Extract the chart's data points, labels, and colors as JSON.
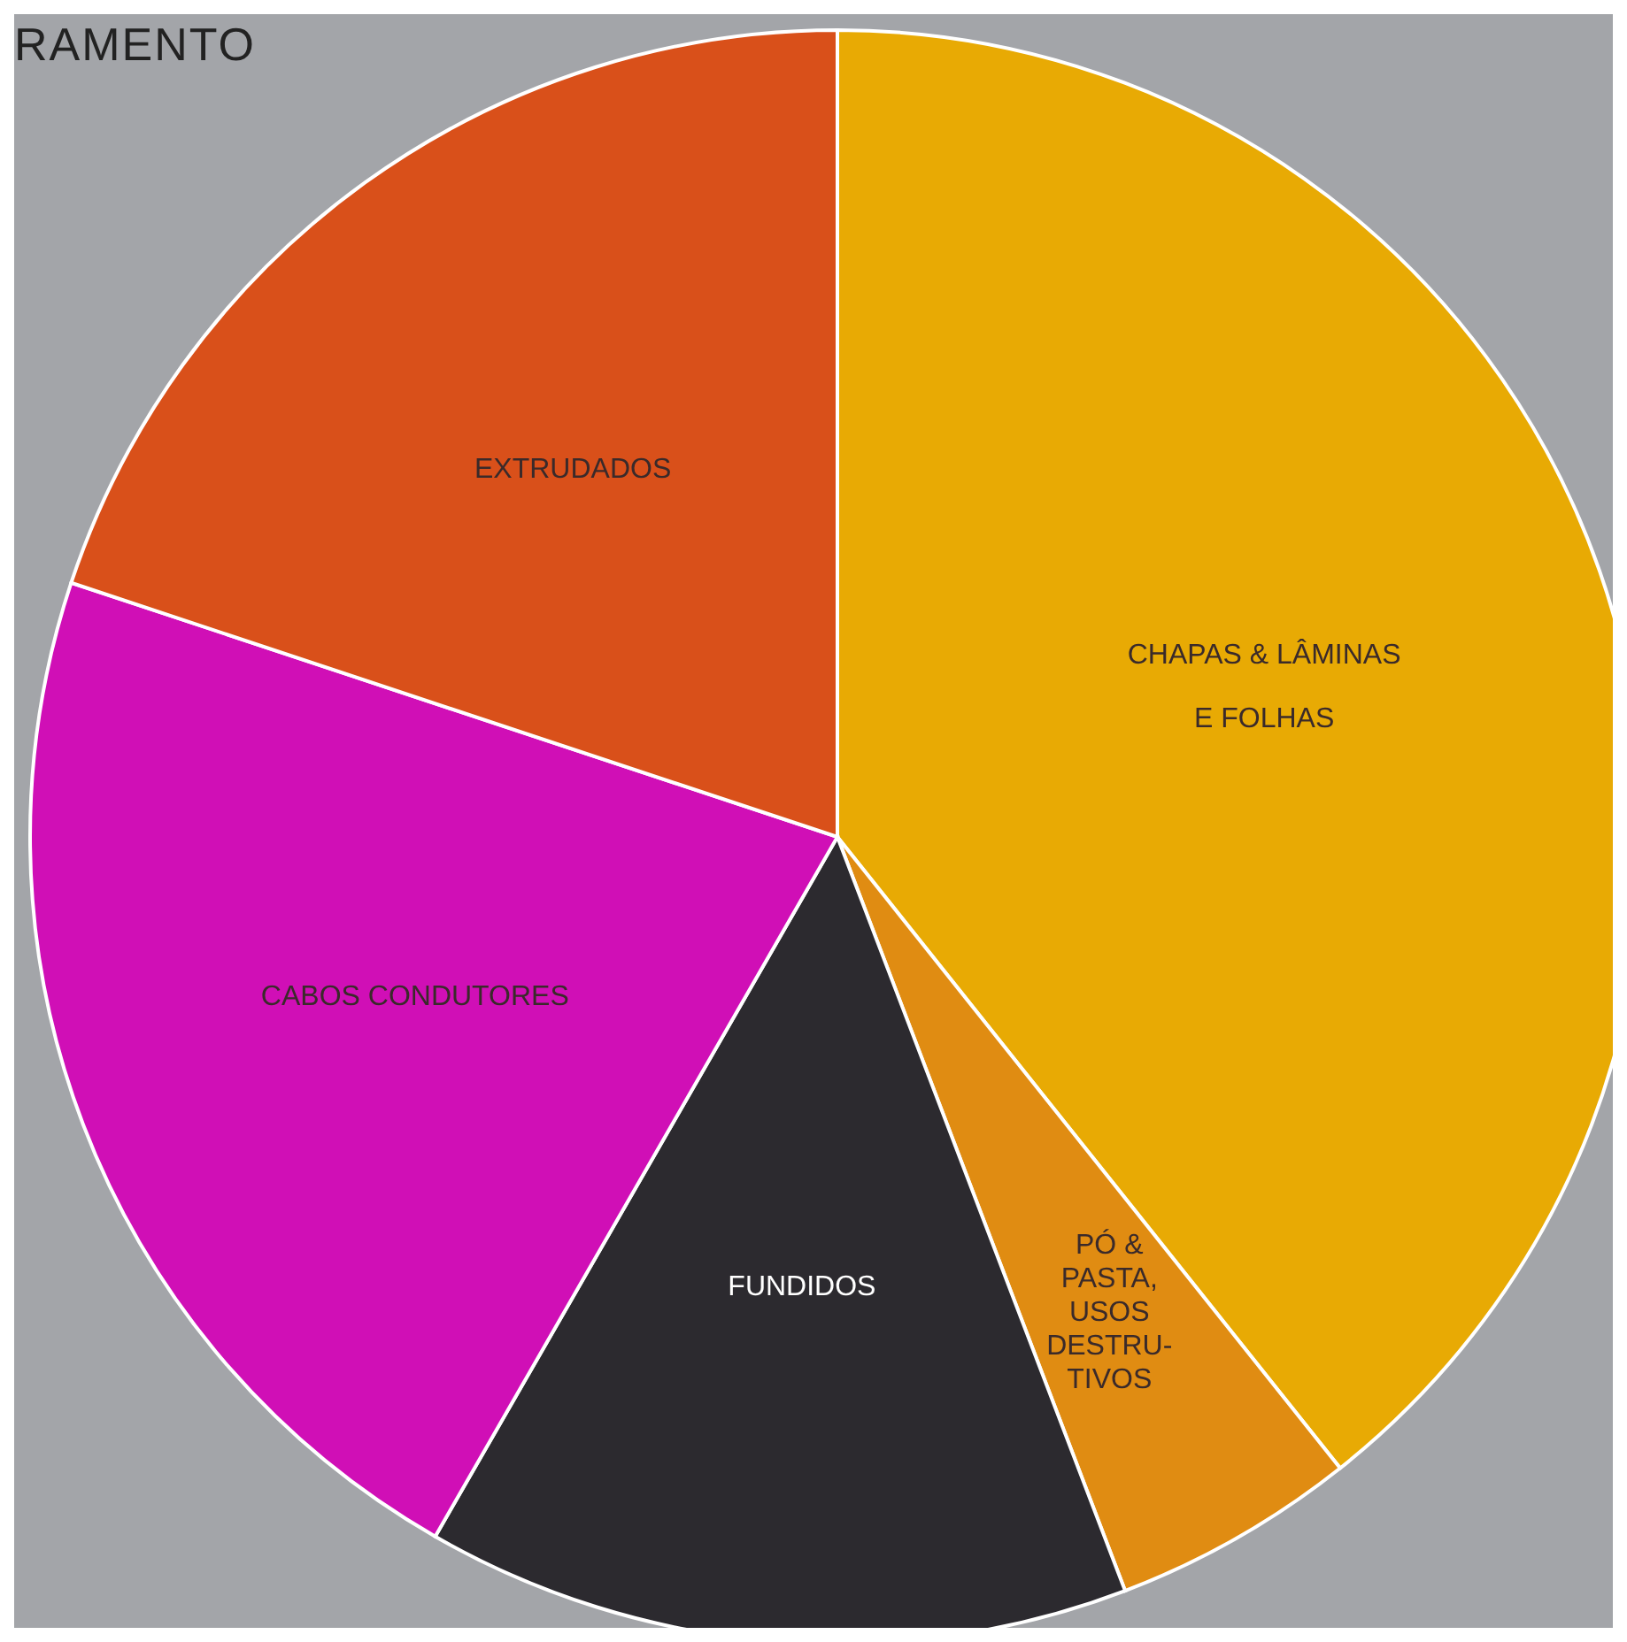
{
  "chart_data": {
    "type": "pie",
    "title": "RAMENTO",
    "categories": [
      "CHAPAS & LÂMINAS\nE   FOLHAS",
      "PÓ &\nPASTA,\nUSOS\nDESTRU-\nTIVOS",
      "FUNDIDOS",
      "CABOS CONDUTORES",
      "EXTRUDADOS"
    ],
    "values": [
      39.3,
      4.9,
      14.1,
      21.8,
      19.9
    ],
    "colors": [
      "#e8aa04",
      "#e08c12",
      "#2c2a2f",
      "#d00fb6",
      "#d9501a"
    ],
    "legend": false
  }
}
